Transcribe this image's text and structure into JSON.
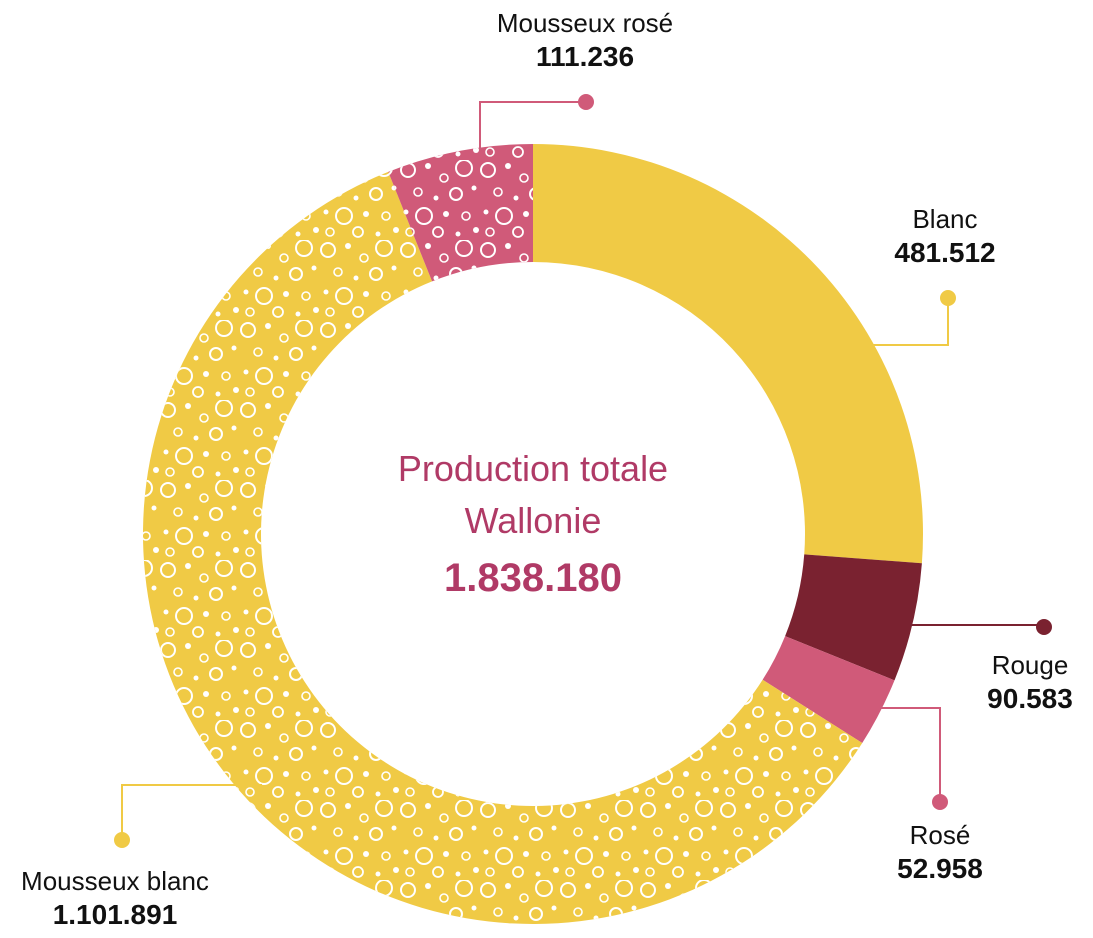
{
  "center": {
    "line1": "Production totale",
    "line2": "Wallonie",
    "total": "1.838.180"
  },
  "colors": {
    "blanc": "#f0ca45",
    "rouge": "#7a2230",
    "rose": "#d05a79",
    "mousseux_rose": "#d05a79",
    "mousseux_blanc": "#f0ca45",
    "center_text": "#b03a66"
  },
  "chart_data": {
    "type": "pie",
    "donut": true,
    "order": "clockwise from top",
    "slices": [
      {
        "label": "Blanc",
        "value": 481512,
        "display": "481.512",
        "color": "#f0ca45",
        "pattern": "none"
      },
      {
        "label": "Rouge",
        "value": 90583,
        "display": "90.583",
        "color": "#7a2230",
        "pattern": "none"
      },
      {
        "label": "Rosé",
        "value": 52958,
        "display": "52.958",
        "color": "#d05a79",
        "pattern": "none"
      },
      {
        "label": "Mousseux blanc",
        "value": 1101891,
        "display": "1.101.891",
        "color": "#f0ca45",
        "pattern": "bubbles"
      },
      {
        "label": "Mousseux rosé",
        "value": 111236,
        "display": "111.236",
        "color": "#d05a79",
        "pattern": "bubbles"
      }
    ]
  }
}
